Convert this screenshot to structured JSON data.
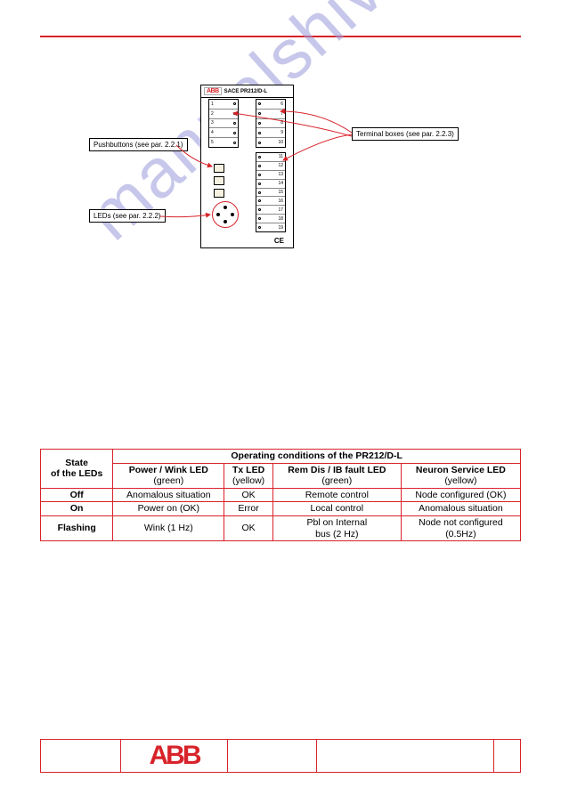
{
  "watermark": "manualshive.com",
  "diagram": {
    "device_brand": "ABB",
    "device_model": "SACE PR212/D-L",
    "callout_pushbuttons": "Pushbuttons (see par. 2.2.1)",
    "callout_leds": "LEDs (see par. 2.2.2)",
    "callout_terminals": "Terminal boxes (see par. 2.2.3)",
    "ce": "CE",
    "left_terminals": [
      "1",
      "2",
      "3",
      "4",
      "5"
    ],
    "right_terminals_1": [
      "6",
      "7",
      "8",
      "9",
      "10"
    ],
    "right_terminals_2": [
      "11",
      "12",
      "13",
      "14",
      "15",
      "16",
      "17",
      "18",
      "19"
    ],
    "callout_box_border": "#000000",
    "arrow_color": "#d8232a"
  },
  "table": {
    "h_state": "State\nof the LEDs",
    "h_cond": "Operating conditions of the PR212/D-L",
    "c1_name": "Power  / Wink LED",
    "c1_color": "(green)",
    "c2_name": "Tx LED",
    "c2_color": "(yellow)",
    "c3_name": "Rem Dis / IB fault LED",
    "c3_color": "(green)",
    "c4_name": "Neuron Service LED",
    "c4_color": "(yellow)",
    "r1_s": "Off",
    "r1_1": "Anomalous situation",
    "r1_2": "OK",
    "r1_3": "Remote control",
    "r1_4": "Node configured (OK)",
    "r2_s": "On",
    "r2_1": "Power on  (OK)",
    "r2_2": "Error",
    "r2_3": "Local control",
    "r2_4": "Anomalous situation",
    "r3_s": "Flashing",
    "r3_1": "Wink (1 Hz)",
    "r3_2": "OK",
    "r3_3": "Pbl on Internal\nbus (2 Hz)",
    "r3_4": "Node not configured\n(0.5Hz)"
  },
  "footer": {
    "logo": "ABB"
  },
  "colors": {
    "brand_red": "#d8232a",
    "watermark": "#9b9bdb"
  }
}
